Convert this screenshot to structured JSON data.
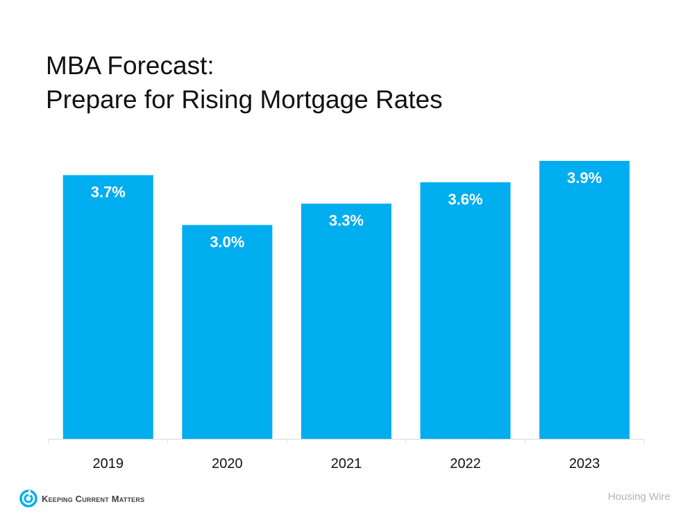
{
  "title_line1": "MBA Forecast:",
  "title_line2": "Prepare for Rising Mortgage Rates",
  "logo_text": "Keeping Current Matters",
  "source": "Housing Wire",
  "colors": {
    "bar": "#00AEEF",
    "axis": "#d9d9d9",
    "label": "#ffffff",
    "tick": "#111111"
  },
  "chart_data": {
    "type": "bar",
    "categories": [
      "2019",
      "2020",
      "2021",
      "2022",
      "2023"
    ],
    "values": [
      3.7,
      3.0,
      3.3,
      3.6,
      3.9
    ],
    "labels": [
      "3.7%",
      "3.0%",
      "3.3%",
      "3.6%",
      "3.9%"
    ],
    "title": "MBA Forecast: Prepare for Rising Mortgage Rates",
    "xlabel": "",
    "ylabel": "",
    "ylim": [
      0,
      3.9
    ],
    "grid": false,
    "legend": "none"
  }
}
